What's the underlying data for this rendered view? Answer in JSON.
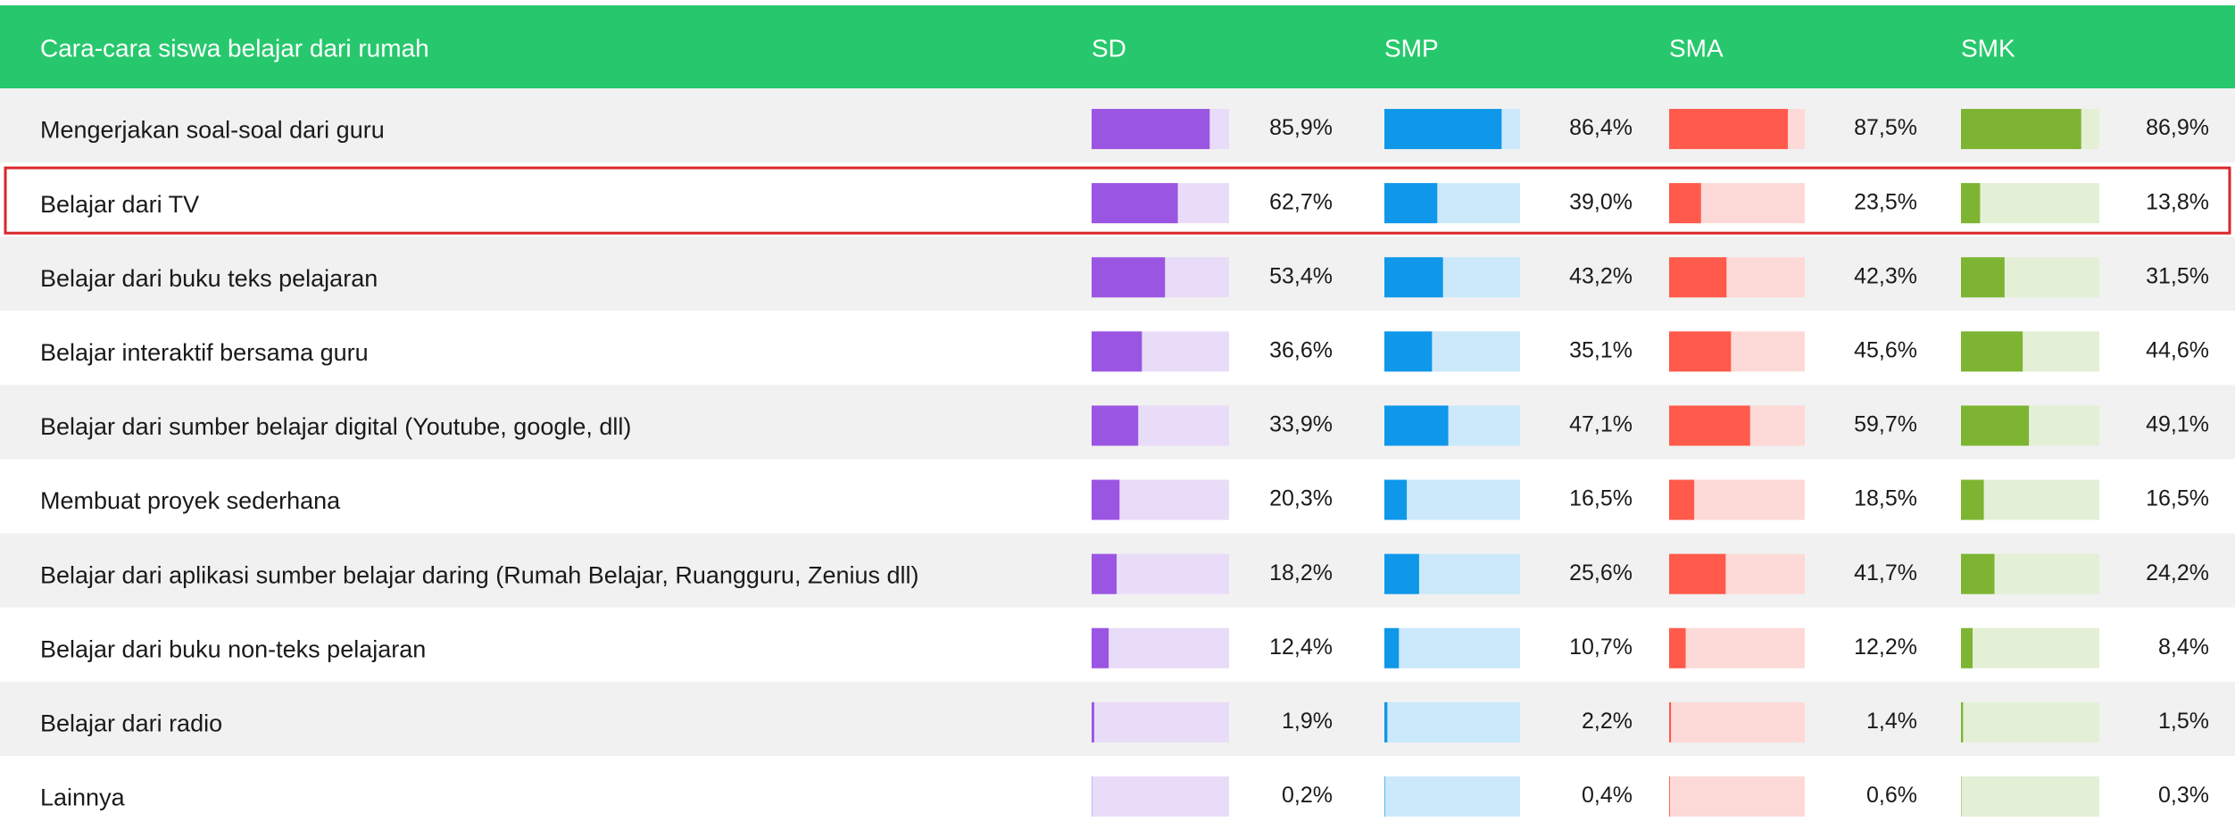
{
  "chart_data": {
    "type": "bar",
    "orientation": "horizontal",
    "header": "Cara-cara siswa belajar dari rumah",
    "categories": [
      "Mengerjakan soal-soal dari guru",
      "Belajar dari TV",
      "Belajar dari buku teks pelajaran",
      "Belajar interaktif bersama guru",
      "Belajar dari sumber belajar digital (Youtube, google, dll)",
      "Membuat proyek sederhana",
      "Belajar dari aplikasi sumber belajar daring (Rumah Belajar, Ruangguru, Zenius dll)",
      "Belajar dari buku non-teks pelajaran",
      "Belajar dari radio",
      "Lainnya"
    ],
    "xlim": [
      0,
      100
    ],
    "highlight": 1,
    "header_color": "#27c86d",
    "highlight_color": "#d9262b",
    "series": [
      {
        "name": "SD",
        "color": "#9b55e3",
        "track_color": "#e9dcf8",
        "values": [
          85.9,
          62.7,
          53.4,
          36.6,
          33.9,
          20.3,
          18.2,
          12.4,
          1.9,
          0.2
        ],
        "value_labels": [
          "85,9%",
          "62,7%",
          "53,4%",
          "36,6%",
          "33,9%",
          "20,3%",
          "18,2%",
          "12,4%",
          "1,9%",
          "0,2%"
        ]
      },
      {
        "name": "SMP",
        "color": "#0f97e9",
        "track_color": "#cbe9fb",
        "values": [
          86.4,
          39.0,
          43.2,
          35.1,
          47.1,
          16.5,
          25.6,
          10.7,
          2.2,
          0.4
        ],
        "value_labels": [
          "86,4%",
          "39,0%",
          "43,2%",
          "35,1%",
          "47,1%",
          "16,5%",
          "25,6%",
          "10,7%",
          "2,2%",
          "0,4%"
        ]
      },
      {
        "name": "SMA",
        "color": "#ff5a4b",
        "track_color": "#fdd9d7",
        "values": [
          87.5,
          23.5,
          42.3,
          45.6,
          59.7,
          18.5,
          41.7,
          12.2,
          1.4,
          0.6
        ],
        "value_labels": [
          "87,5%",
          "23,5%",
          "42,3%",
          "45,6%",
          "59,7%",
          "18,5%",
          "41,7%",
          "12,2%",
          "1,4%",
          "0,6%"
        ]
      },
      {
        "name": "SMK",
        "color": "#7db432",
        "track_color": "#e3f0d6",
        "values": [
          86.9,
          13.8,
          31.5,
          44.6,
          49.1,
          16.5,
          24.2,
          8.4,
          1.5,
          0.3
        ],
        "value_labels": [
          "86,9%",
          "13,8%",
          "31,5%",
          "44,6%",
          "49,1%",
          "16,5%",
          "24,2%",
          "8,4%",
          "1,5%",
          "0,3%"
        ]
      }
    ]
  }
}
